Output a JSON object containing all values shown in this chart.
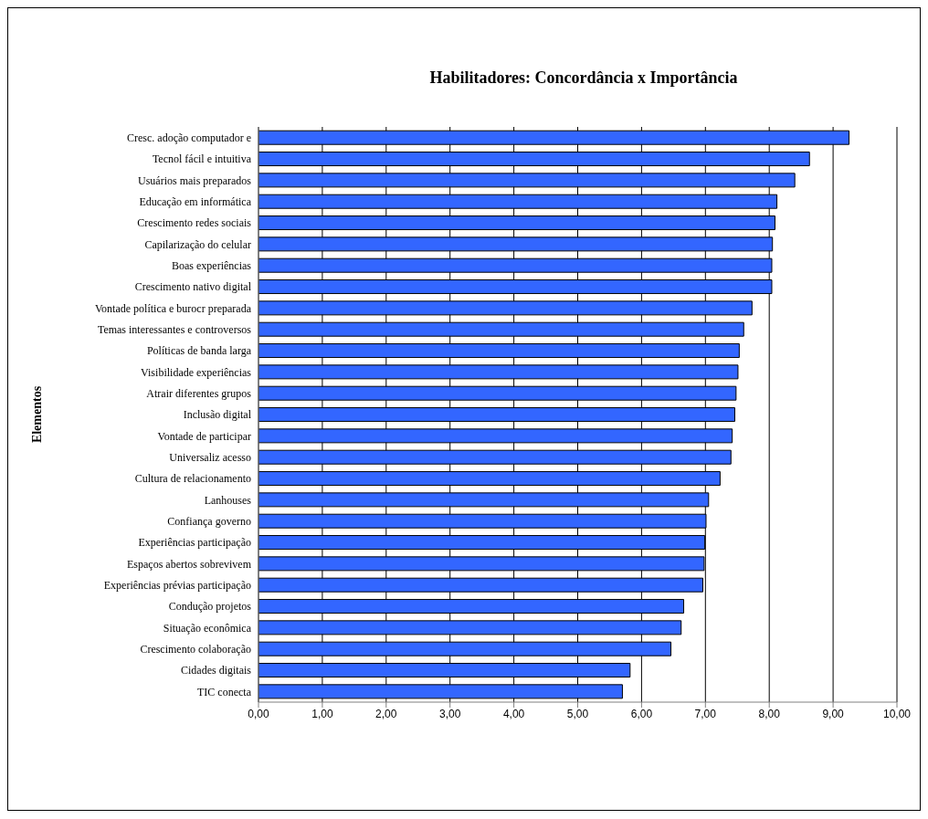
{
  "chart_data": {
    "type": "bar",
    "orientation": "horizontal",
    "title": "Habilitadores: Concordância x Importância",
    "ylabel": "Elementos",
    "categories": [
      "Cresc. adoção computador e",
      "Tecnol fácil e intuitiva",
      "Usuários mais preparados",
      "Educação em informática",
      "Crescimento redes sociais",
      "Capilarização do celular",
      "Boas experiências",
      "Crescimento nativo digital",
      "Vontade política e burocr preparada",
      "Temas interessantes e controversos",
      "Políticas de banda larga",
      "Visibilidade experiências",
      "Atrair diferentes grupos",
      "Inclusão digital",
      "Vontade de participar",
      "Universaliz acesso",
      "Cultura de relacionamento",
      "Lanhouses",
      "Confiança governo",
      "Experiências participação",
      "Espaços abertos sobrevivem",
      "Experiências prévias participação",
      "Condução projetos",
      "Situação econômica",
      "Crescimento colaboração",
      "Cidades digitais",
      "TIC conecta"
    ],
    "values": [
      9.25,
      8.63,
      8.4,
      8.12,
      8.09,
      8.05,
      8.04,
      8.04,
      7.73,
      7.6,
      7.53,
      7.51,
      7.48,
      7.46,
      7.42,
      7.4,
      7.23,
      7.05,
      7.01,
      6.99,
      6.98,
      6.96,
      6.66,
      6.62,
      6.46,
      5.82,
      5.7
    ],
    "color": "#3366ff",
    "xlim": [
      0,
      10
    ],
    "xticks": [
      {
        "value": 0,
        "label": "0,00"
      },
      {
        "value": 1,
        "label": "1,00"
      },
      {
        "value": 2,
        "label": "2,00"
      },
      {
        "value": 3,
        "label": "3,00"
      },
      {
        "value": 4,
        "label": "4,00"
      },
      {
        "value": 5,
        "label": "5,00"
      },
      {
        "value": 6,
        "label": "6,00"
      },
      {
        "value": 7,
        "label": "7,00"
      },
      {
        "value": 8,
        "label": "8,00"
      },
      {
        "value": 9,
        "label": "9,00"
      },
      {
        "value": 10,
        "label": "10,00"
      }
    ],
    "grid": "x",
    "legend": false
  }
}
